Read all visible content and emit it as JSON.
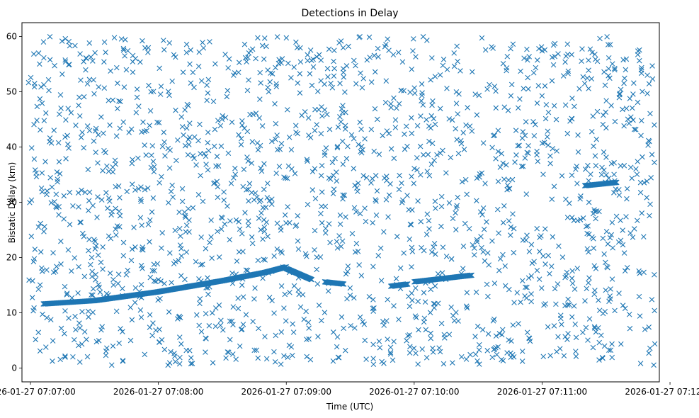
{
  "chart_data": {
    "type": "scatter",
    "title": "Detections in Delay",
    "xlabel": "Time (UTC)",
    "ylabel": "Bistatic Delay (km)",
    "x_ticks": [
      "2026-01-27 07:07:00",
      "2026-01-27 07:08:00",
      "2026-01-27 07:09:00",
      "2026-01-27 07:10:00",
      "2026-01-27 07:11:00",
      "2026-01-27 07:12:00"
    ],
    "y_ticks": [
      "0",
      "10",
      "20",
      "30",
      "40",
      "50",
      "60"
    ],
    "xlim": [
      "2026-01-27 07:06:56",
      "2026-01-27 07:11:55"
    ],
    "ylim": [
      -2.5,
      62.5
    ],
    "grid": false,
    "marker": "x",
    "color": "#1f77b4",
    "clutter": {
      "x_range": [
        "2026-01-27 07:06:59",
        "2026-01-27 07:11:53"
      ],
      "y_range": [
        0.5,
        60
      ],
      "approx_count": 1800
    },
    "tracks": [
      {
        "x": [
          "2026-01-27 07:07:06",
          "2026-01-27 07:07:30",
          "2026-01-27 07:08:00",
          "2026-01-27 07:08:30",
          "2026-01-27 07:08:50",
          "2026-01-27 07:09:00"
        ],
        "y": [
          11.6,
          12.2,
          13.8,
          15.8,
          17.3,
          18.3
        ]
      },
      {
        "x": [
          "2026-01-27 07:09:00",
          "2026-01-27 07:09:06",
          "2026-01-27 07:09:12"
        ],
        "y": [
          18.0,
          17.0,
          16.0
        ]
      },
      {
        "x": [
          "2026-01-27 07:09:18",
          "2026-01-27 07:09:27"
        ],
        "y": [
          15.6,
          15.2
        ]
      },
      {
        "x": [
          "2026-01-27 07:09:49",
          "2026-01-27 07:09:57"
        ],
        "y": [
          14.8,
          15.2
        ]
      },
      {
        "x": [
          "2026-01-27 07:10:00",
          "2026-01-27 07:10:27"
        ],
        "y": [
          15.6,
          16.8
        ]
      },
      {
        "x": [
          "2026-01-27 07:11:20",
          "2026-01-27 07:11:35"
        ],
        "y": [
          33.0,
          33.6
        ]
      }
    ]
  }
}
